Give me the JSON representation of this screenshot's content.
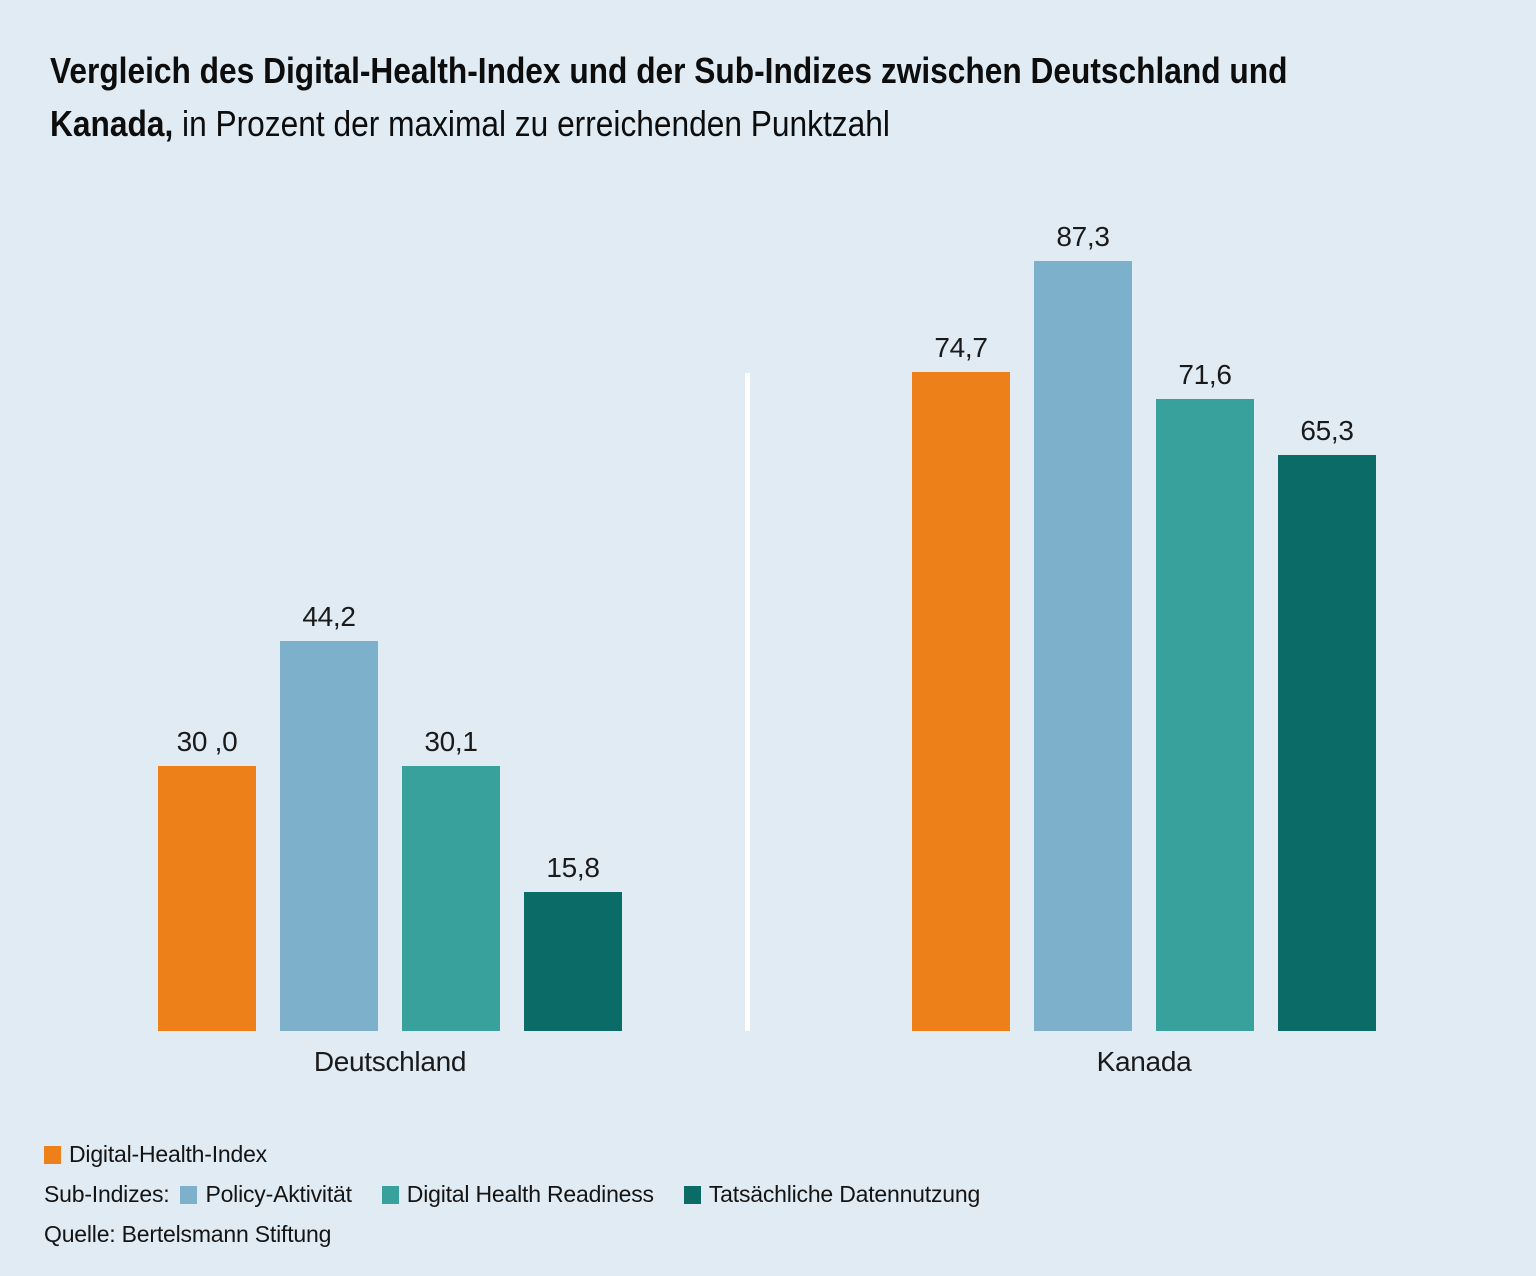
{
  "title": {
    "line1_bold": "Vergleich des Digital-Health-Index und der Sub-Indizes zwischen Deutschland und",
    "line2_bold": "Kanada,",
    "line2_regular": " in Prozent der maximal zu erreichenden Punktzahl"
  },
  "colors": {
    "background": "#e0ebf4",
    "orange": "#ee8019",
    "light_blue": "#7db0cb",
    "teal": "#38a19b",
    "dark_teal": "#0a6b67",
    "divider": "#ffffff",
    "text": "#1a1a1a"
  },
  "chart_data": {
    "type": "bar",
    "categories": [
      "Deutschland",
      "Kanada"
    ],
    "series": [
      {
        "name": "Digital-Health-Index",
        "color": "#ee8019",
        "values": [
          30.0,
          74.7
        ],
        "value_labels": [
          "30 ,0",
          "74,7"
        ]
      },
      {
        "name": "Policy-Aktivität",
        "color": "#7db0cb",
        "values": [
          44.2,
          87.3
        ],
        "value_labels": [
          "44,2",
          "87,3"
        ]
      },
      {
        "name": "Digital Health Readiness",
        "color": "#38a19b",
        "values": [
          30.1,
          71.6
        ],
        "value_labels": [
          "30,1",
          "71,6"
        ]
      },
      {
        "name": "Tatsächliche Datennutzung",
        "color": "#0a6b67",
        "values": [
          15.8,
          65.3
        ],
        "value_labels": [
          "15,8",
          "65,3"
        ]
      }
    ],
    "unit": "Prozent der maximal zu erreichenden Punktzahl",
    "ylim": [
      0,
      100
    ],
    "grid": false,
    "value_labels_shown": true,
    "legend_position": "bottom-left"
  },
  "legend": {
    "row1_label": "Digital-Health-Index",
    "row2_prefix": "Sub-Indizes:",
    "row2_items": [
      "Policy-Aktivität",
      "Digital Health Readiness",
      "Tatsächliche Datennutzung"
    ],
    "source": "Quelle: Bertelsmann Stiftung"
  }
}
